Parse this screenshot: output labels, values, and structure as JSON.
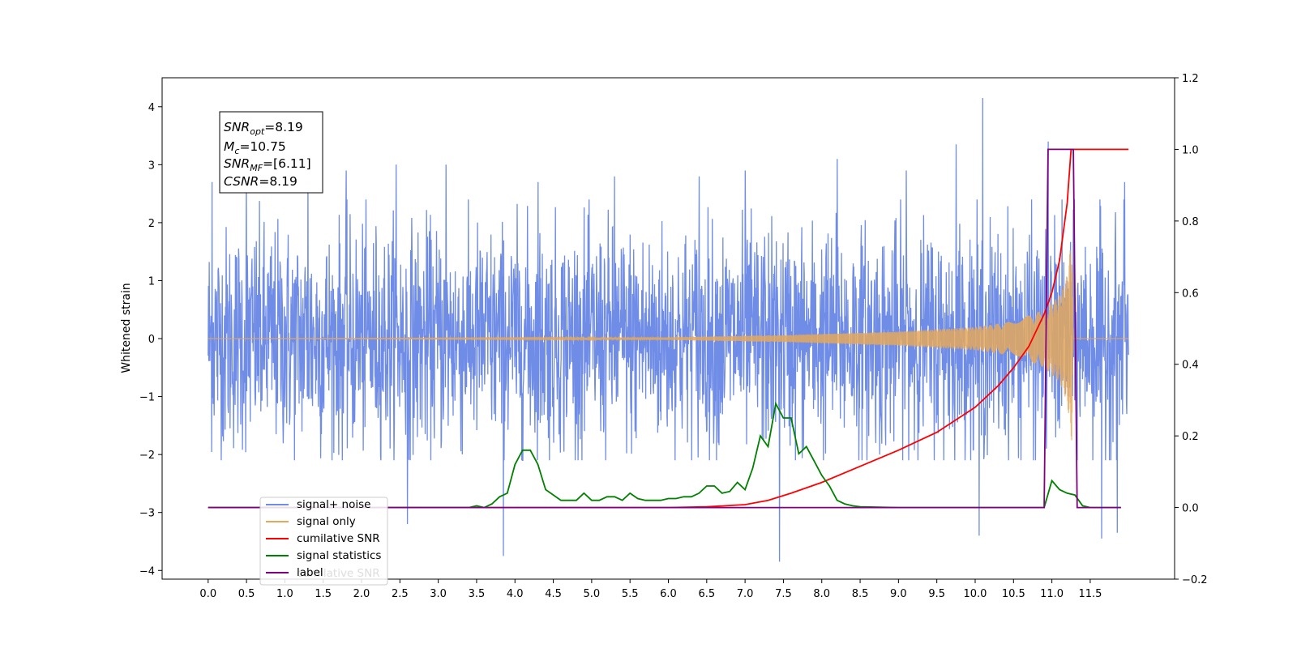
{
  "chart_data": {
    "type": "line",
    "title": "",
    "xlabel": "",
    "ylabel": "Whitened strain",
    "x_range": [
      -0.6,
      12.6
    ],
    "ylim": [
      -4.15,
      4.5
    ],
    "y2lim": [
      -0.2,
      1.2
    ],
    "x_ticks": [
      "0.0",
      "0.5",
      "1.0",
      "1.5",
      "2.0",
      "2.5",
      "3.0",
      "3.5",
      "4.0",
      "4.5",
      "5.0",
      "5.5",
      "6.0",
      "6.5",
      "7.0",
      "7.5",
      "8.0",
      "8.5",
      "9.0",
      "9.5",
      "10.0",
      "10.5",
      "11.0",
      "11.5"
    ],
    "y_ticks": [
      "4",
      "3",
      "2",
      "1",
      "0",
      "−1",
      "−2",
      "−3",
      "−4"
    ],
    "y2_ticks": [
      "1.2",
      "1.0",
      "0.8",
      "0.6",
      "0.4",
      "0.2",
      "0.0",
      "−0.2"
    ],
    "grid": false,
    "legend_position": "lower-left",
    "annotation": {
      "snr_opt": {
        "base": "SNR",
        "sub": "opt",
        "value": "=8.19"
      },
      "mc": {
        "base": "M",
        "sub": "c",
        "value": "=10.75"
      },
      "snr_mf": {
        "base": "SNR",
        "sub": "MF",
        "value": "=[6.11]"
      },
      "csnr": {
        "base": "CSNR",
        "value": "=8.19"
      }
    },
    "series": [
      {
        "name": "signal+ noise",
        "color": "#6f8ce6",
        "axis": "left",
        "x_start": 0.0,
        "x_end": 12.0,
        "envelope_upper": 1.9,
        "envelope_lower": -1.6,
        "peaks": [
          [
            0.05,
            2.7
          ],
          [
            0.5,
            2.9
          ],
          [
            1.3,
            2.9
          ],
          [
            1.8,
            2.9
          ],
          [
            2.45,
            3.0
          ],
          [
            2.6,
            -3.2
          ],
          [
            3.1,
            3.0
          ],
          [
            3.85,
            -3.75
          ],
          [
            4.3,
            2.7
          ],
          [
            5.3,
            2.8
          ],
          [
            6.4,
            2.8
          ],
          [
            7.0,
            2.9
          ],
          [
            7.45,
            -3.85
          ],
          [
            8.2,
            3.1
          ],
          [
            9.1,
            2.9
          ],
          [
            9.75,
            3.35
          ],
          [
            10.1,
            4.15
          ],
          [
            10.05,
            -3.4
          ],
          [
            10.95,
            3.4
          ],
          [
            11.65,
            -3.45
          ],
          [
            11.85,
            -3.35
          ],
          [
            11.95,
            2.7
          ]
        ]
      },
      {
        "name": "signal only",
        "color": "#e4a85c",
        "axis": "left",
        "x_start": 0.0,
        "x_end": 12.0,
        "chirp_amplitude": [
          [
            0.0,
            0.0
          ],
          [
            6.0,
            0.02
          ],
          [
            7.5,
            0.06
          ],
          [
            9.0,
            0.12
          ],
          [
            10.0,
            0.2
          ],
          [
            10.5,
            0.3
          ],
          [
            10.9,
            0.5
          ],
          [
            11.1,
            0.75
          ],
          [
            11.2,
            1.1
          ],
          [
            11.26,
            1.8
          ],
          [
            11.28,
            0.0
          ],
          [
            12.0,
            0.0
          ]
        ]
      },
      {
        "name": "cumilative SNR",
        "color": "#ff0000",
        "axis": "right",
        "x": [
          0.0,
          6.0,
          6.5,
          7.0,
          7.3,
          7.6,
          8.0,
          8.5,
          9.0,
          9.5,
          10.0,
          10.3,
          10.5,
          10.7,
          10.9,
          11.0,
          11.1,
          11.2,
          11.25,
          11.27,
          12.0
        ],
        "y": [
          0.0,
          0.0,
          0.002,
          0.008,
          0.02,
          0.04,
          0.07,
          0.115,
          0.16,
          0.21,
          0.28,
          0.34,
          0.39,
          0.45,
          0.54,
          0.6,
          0.69,
          0.85,
          1.0,
          1.0,
          1.0
        ]
      },
      {
        "name": "signal statistics",
        "color": "#008000",
        "axis": "right",
        "x": [
          0.0,
          3.4,
          3.5,
          3.6,
          3.7,
          3.8,
          3.9,
          4.0,
          4.1,
          4.2,
          4.3,
          4.4,
          4.5,
          4.6,
          4.7,
          4.8,
          4.9,
          5.0,
          5.1,
          5.2,
          5.3,
          5.4,
          5.5,
          5.6,
          5.7,
          5.8,
          5.9,
          6.0,
          6.1,
          6.2,
          6.3,
          6.4,
          6.5,
          6.6,
          6.7,
          6.8,
          6.9,
          7.0,
          7.1,
          7.2,
          7.3,
          7.4,
          7.5,
          7.6,
          7.7,
          7.8,
          7.9,
          8.0,
          8.1,
          8.2,
          8.3,
          8.4,
          8.5,
          9.0,
          10.9,
          11.0,
          11.1,
          11.2,
          11.3,
          11.4,
          11.5,
          11.9
        ],
        "y": [
          0.0,
          0.0,
          0.005,
          0.0,
          0.01,
          0.03,
          0.04,
          0.12,
          0.16,
          0.16,
          0.12,
          0.05,
          0.035,
          0.02,
          0.02,
          0.02,
          0.04,
          0.02,
          0.02,
          0.03,
          0.03,
          0.02,
          0.04,
          0.025,
          0.02,
          0.02,
          0.02,
          0.025,
          0.025,
          0.03,
          0.03,
          0.04,
          0.06,
          0.06,
          0.04,
          0.045,
          0.07,
          0.05,
          0.11,
          0.2,
          0.17,
          0.29,
          0.25,
          0.25,
          0.15,
          0.17,
          0.13,
          0.09,
          0.06,
          0.02,
          0.01,
          0.005,
          0.002,
          0.0,
          0.0,
          0.075,
          0.05,
          0.04,
          0.035,
          0.005,
          0.0,
          0.0
        ]
      },
      {
        "name": "label",
        "color": "#800080",
        "axis": "right",
        "x": [
          0.0,
          10.9,
          10.95,
          11.28,
          11.33,
          11.9
        ],
        "y": [
          0.0,
          0.0,
          1.0,
          1.0,
          0.0,
          0.0
        ]
      }
    ],
    "legend_ghost_text": "cumilative SNR"
  }
}
